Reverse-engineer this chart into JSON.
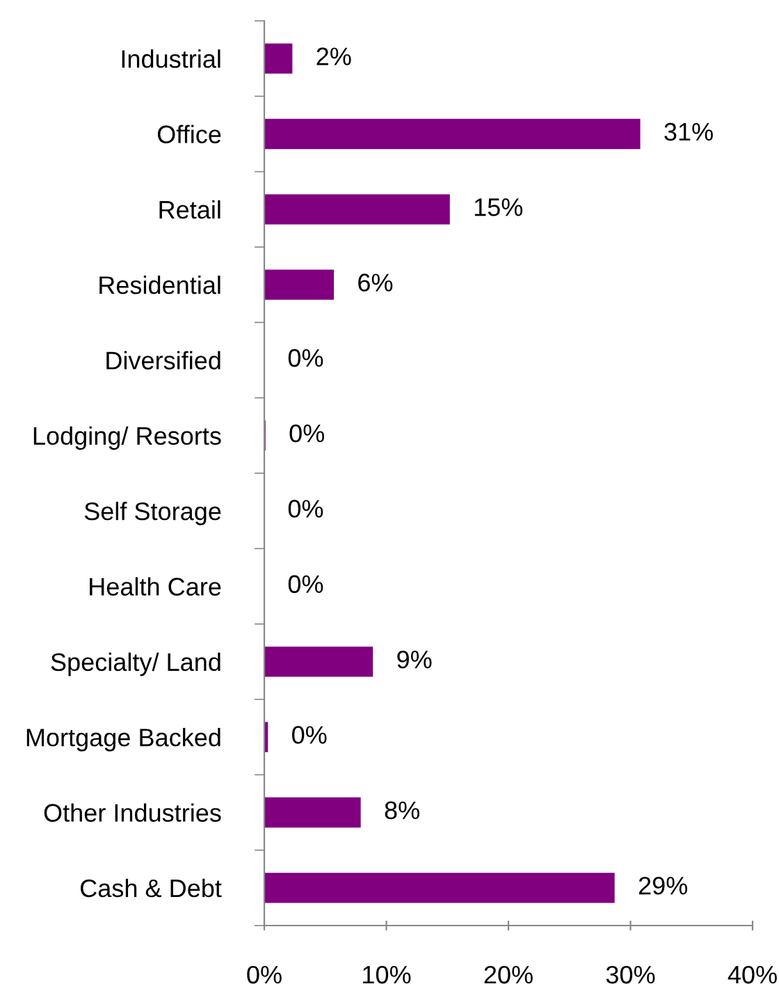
{
  "chart_data": {
    "type": "bar",
    "orientation": "horizontal",
    "categories": [
      "Industrial",
      "Office",
      "Retail",
      "Residential",
      "Diversified",
      "Lodging/ Resorts",
      "Self Storage",
      "Health Care",
      "Specialty/ Land",
      "Mortgage Backed",
      "Other Industries",
      "Cash & Debt"
    ],
    "values": [
      2.3,
      30.8,
      15.2,
      5.7,
      0,
      0.1,
      0,
      0,
      8.9,
      0.3,
      7.9,
      28.7
    ],
    "value_labels": [
      "2%",
      "31%",
      "15%",
      "6%",
      "0%",
      "0%",
      "0%",
      "0%",
      "9%",
      "0%",
      "8%",
      "29%"
    ],
    "color": "#800080",
    "xlim": [
      0,
      40
    ],
    "xticks": [
      {
        "value": 0,
        "label": "0%"
      },
      {
        "value": 10,
        "label": "10%"
      },
      {
        "value": 20,
        "label": "20%"
      },
      {
        "value": 30,
        "label": "30%"
      },
      {
        "value": 40,
        "label": "40%"
      }
    ],
    "grid": false,
    "legend": false
  }
}
